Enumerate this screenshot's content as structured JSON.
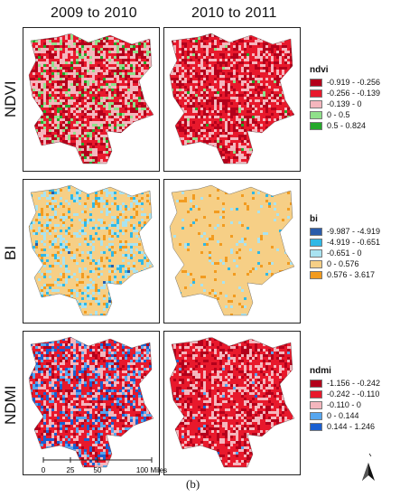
{
  "columns": [
    "2009 to 2010",
    "2010 to 2011"
  ],
  "rows": [
    {
      "label": "NDVI",
      "legend_title": "ndvi",
      "classes": [
        {
          "label": "-0.919 - -0.256",
          "color": "#b3001b"
        },
        {
          "label": "-0.256 - -0.139",
          "color": "#e8192c"
        },
        {
          "label": "-0.139 - 0",
          "color": "#f4b6bd"
        },
        {
          "label": "0 - 0.5",
          "color": "#8fe08a"
        },
        {
          "label": "0.5 - 0.824",
          "color": "#24a82a"
        }
      ]
    },
    {
      "label": "BI",
      "legend_title": "bi",
      "classes": [
        {
          "label": "-9.987 - -4.919",
          "color": "#2a5caa"
        },
        {
          "label": "-4.919 - -0.651",
          "color": "#2fb8e6"
        },
        {
          "label": "-0.651 - 0",
          "color": "#a9e3f1"
        },
        {
          "label": "0 - 0.576",
          "color": "#f6cf86"
        },
        {
          "label": "0.576 - 3.617",
          "color": "#f29b1f"
        }
      ]
    },
    {
      "label": "NDMI",
      "legend_title": "ndmi",
      "classes": [
        {
          "label": "-1.156 - -0.242",
          "color": "#b3001b"
        },
        {
          "label": "-0.242 - -0.110",
          "color": "#e8192c"
        },
        {
          "label": "-0.110 - 0",
          "color": "#f4b6bd"
        },
        {
          "label": "0 - 0.144",
          "color": "#56a6ef"
        },
        {
          "label": "0.144 - 1.246",
          "color": "#1a5fd1"
        }
      ]
    }
  ],
  "scale": {
    "ticks": [
      "0",
      "25",
      "50",
      "100 Miles"
    ]
  },
  "caption": "(b)"
}
